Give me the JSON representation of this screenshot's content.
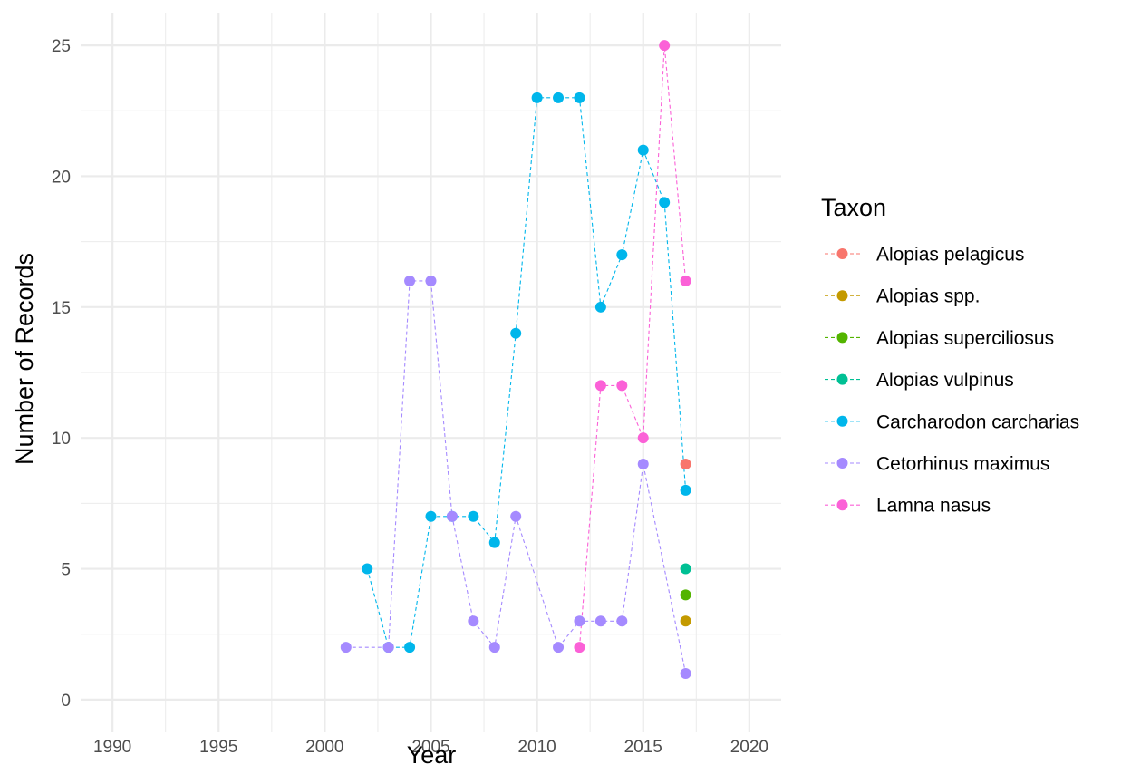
{
  "chart_data": {
    "type": "line",
    "title": "",
    "xlabel": "Year",
    "ylabel": "Number of Records",
    "xlim": [
      1988.5,
      2021.5
    ],
    "ylim": [
      -1.25,
      26.25
    ],
    "x_ticks": [
      1990,
      1995,
      2000,
      2005,
      2010,
      2015,
      2020
    ],
    "y_ticks": [
      0,
      5,
      10,
      15,
      20,
      25
    ],
    "grid": true,
    "legend": {
      "title": "Taxon",
      "position": "right"
    },
    "line_style": "dashed",
    "series": [
      {
        "name": "Alopias pelagicus",
        "color": "#F8766D",
        "points": [
          [
            2017,
            9
          ]
        ]
      },
      {
        "name": "Alopias spp.",
        "color": "#C49A00",
        "points": [
          [
            2017,
            3
          ]
        ]
      },
      {
        "name": "Alopias superciliosus",
        "color": "#53B400",
        "points": [
          [
            2017,
            4
          ]
        ]
      },
      {
        "name": "Alopias vulpinus",
        "color": "#00C094",
        "points": [
          [
            2017,
            5
          ]
        ]
      },
      {
        "name": "Carcharodon carcharias",
        "color": "#00B6EB",
        "points": [
          [
            2002,
            5
          ],
          [
            2003,
            2
          ],
          [
            2004,
            2
          ],
          [
            2005,
            7
          ],
          [
            2006,
            7
          ],
          [
            2007,
            7
          ],
          [
            2008,
            6
          ],
          [
            2009,
            14
          ],
          [
            2010,
            23
          ],
          [
            2011,
            23
          ],
          [
            2012,
            23
          ],
          [
            2013,
            15
          ],
          [
            2014,
            17
          ],
          [
            2015,
            21
          ],
          [
            2016,
            19
          ],
          [
            2017,
            8
          ]
        ]
      },
      {
        "name": "Cetorhinus maximus",
        "color": "#A58AFF",
        "points": [
          [
            2001,
            2
          ],
          [
            2003,
            2
          ],
          [
            2004,
            16
          ],
          [
            2005,
            16
          ],
          [
            2006,
            7
          ],
          [
            2007,
            3
          ],
          [
            2008,
            2
          ],
          [
            2009,
            7
          ],
          [
            2011,
            2
          ],
          [
            2012,
            3
          ],
          [
            2013,
            3
          ],
          [
            2014,
            3
          ],
          [
            2015,
            9
          ],
          [
            2017,
            1
          ]
        ]
      },
      {
        "name": "Lamna nasus",
        "color": "#FB61D7",
        "points": [
          [
            2012,
            2
          ],
          [
            2013,
            12
          ],
          [
            2014,
            12
          ],
          [
            2015,
            10
          ],
          [
            2016,
            25
          ],
          [
            2017,
            16
          ]
        ]
      }
    ]
  }
}
